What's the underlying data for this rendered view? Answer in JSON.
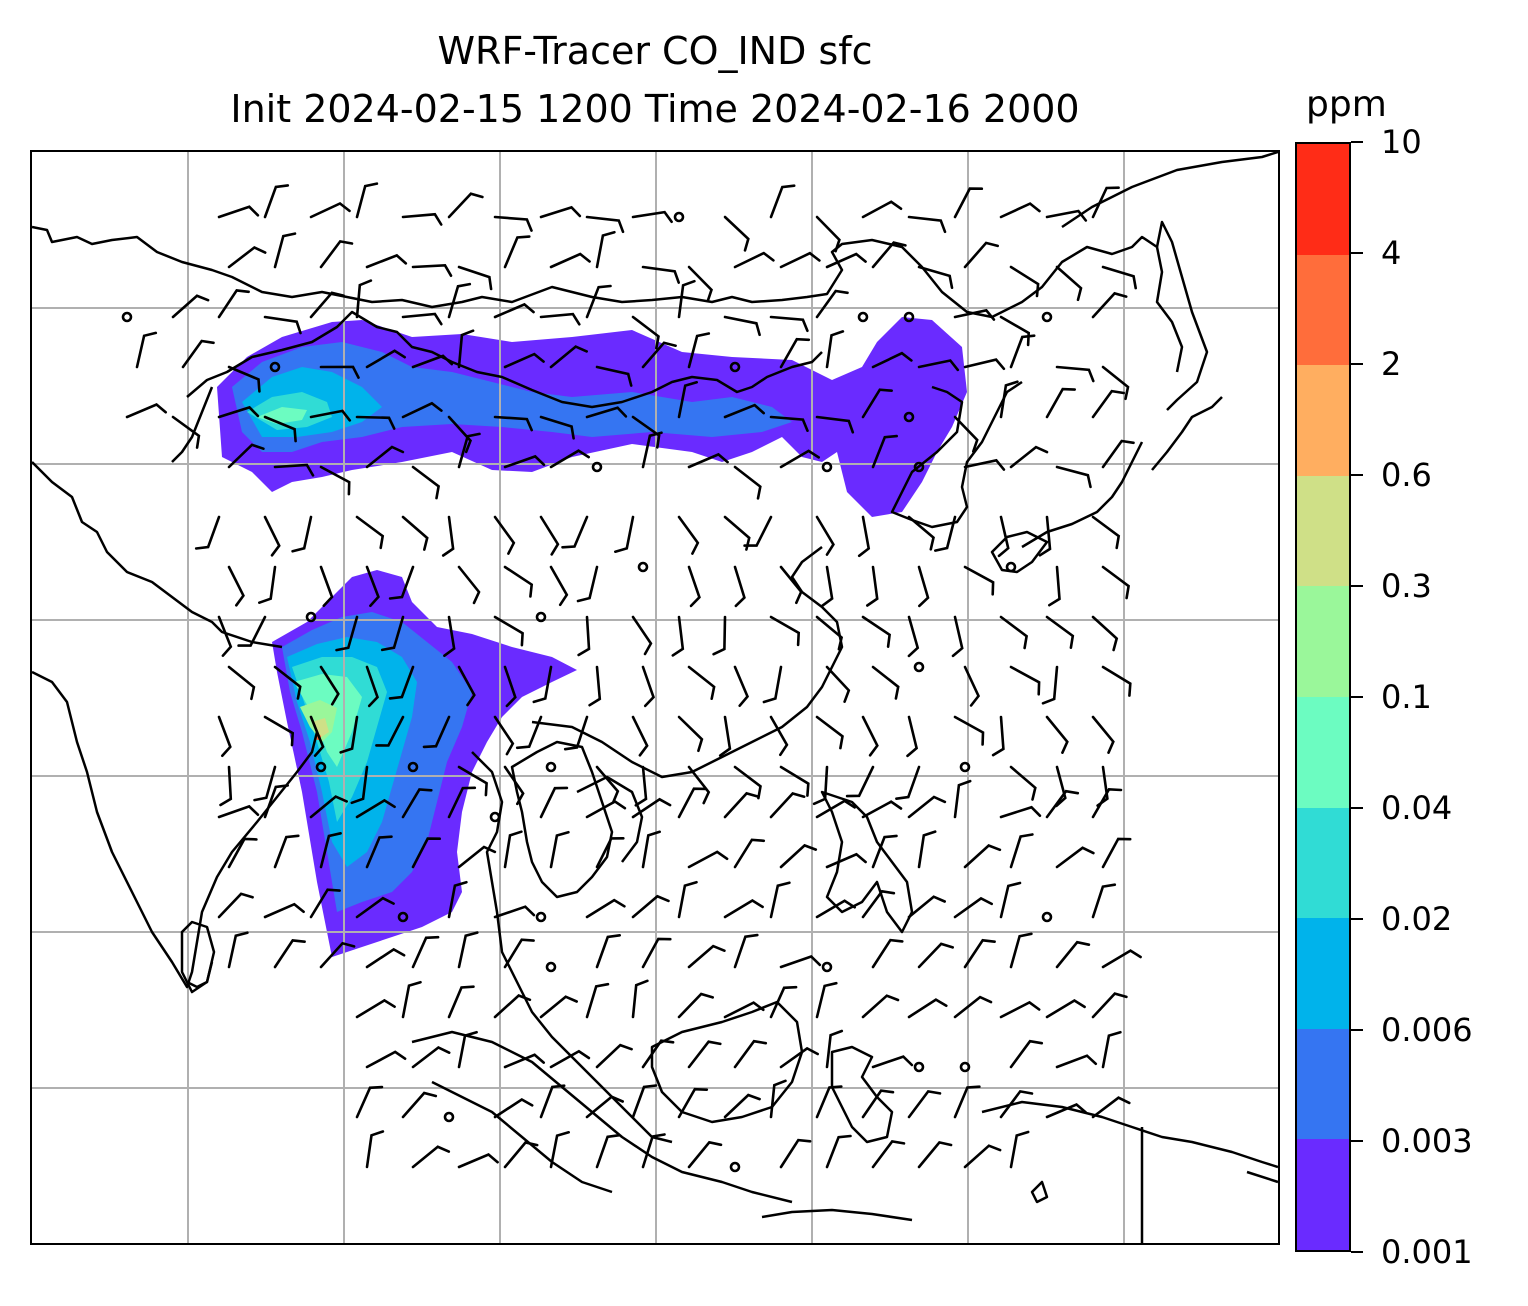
{
  "title": {
    "line1": "WRF-Tracer CO_IND sfc",
    "line2": "Init 2024-02-15 1200 Time 2024-02-16 2000"
  },
  "colorbar": {
    "unit": "ppm",
    "levels": [
      "0.001",
      "0.003",
      "0.006",
      "0.02",
      "0.04",
      "0.1",
      "0.3",
      "0.6",
      "2",
      "4",
      "10"
    ],
    "colors": [
      "#6a2bff",
      "#3575f2",
      "#00b3eb",
      "#30dcd5",
      "#6cfcc1",
      "#9af79a",
      "#cfe087",
      "#ffae60",
      "#ff6d3b",
      "#ff2c17"
    ]
  },
  "map": {
    "gridlines": true,
    "coastline_color": "#000000",
    "gridline_color": "#b0b0b0",
    "wind_barb_color": "#000000"
  }
}
